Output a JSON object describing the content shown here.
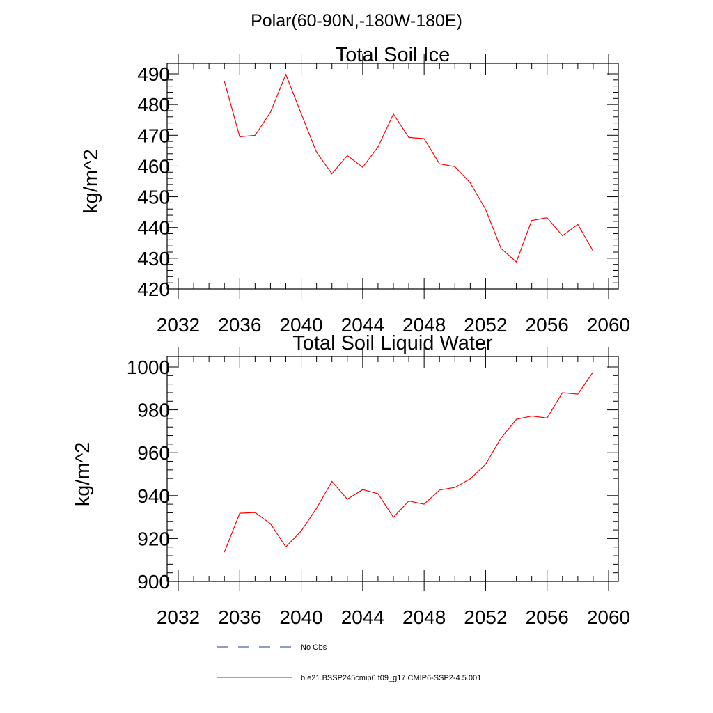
{
  "figure": {
    "title": "Polar(60-90N,-180W-180E)"
  },
  "legend": {
    "placement": "bottom",
    "entries": [
      {
        "label": "No Obs",
        "color": "#1f3a93",
        "style": "dashed"
      },
      {
        "label": "b.e21.BSSP245cmip6.f09_g17.CMIP6-SSP2-4.5.001",
        "color": "#ff0000",
        "style": "solid"
      }
    ]
  },
  "chart_data": [
    {
      "type": "line",
      "title": "Total Soil Ice",
      "xlabel": "",
      "ylabel": "kg/m^2",
      "xlim": [
        2032,
        2060
      ],
      "ylim": [
        420,
        490
      ],
      "xticks": [
        2032,
        2036,
        2040,
        2044,
        2048,
        2052,
        2056,
        2060
      ],
      "yticks": [
        420,
        430,
        440,
        450,
        460,
        470,
        480,
        490
      ],
      "grid": false,
      "series": [
        {
          "name": "b.e21.BSSP245cmip6.f09_g17.CMIP6-SSP2-4.5.001",
          "color": "#ff0000",
          "x": [
            2035,
            2036,
            2037,
            2038,
            2039,
            2040,
            2041,
            2042,
            2043,
            2044,
            2045,
            2046,
            2047,
            2048,
            2049,
            2050,
            2051,
            2052,
            2053,
            2054,
            2055,
            2056,
            2057,
            2058,
            2059
          ],
          "y": [
            487.6,
            469.5,
            470.0,
            477.5,
            489.8,
            477.0,
            464.5,
            457.5,
            463.4,
            459.6,
            466.2,
            476.9,
            469.3,
            468.9,
            460.7,
            459.8,
            454.5,
            445.9,
            433.2,
            428.8,
            442.3,
            443.2,
            437.3,
            441.0,
            432.3
          ]
        }
      ]
    },
    {
      "type": "line",
      "title": "Total Soil Liquid Water",
      "xlabel": "",
      "ylabel": "kg/m^2",
      "xlim": [
        2032,
        2060
      ],
      "ylim": [
        900,
        1000
      ],
      "xticks": [
        2032,
        2036,
        2040,
        2044,
        2048,
        2052,
        2056,
        2060
      ],
      "yticks": [
        900,
        920,
        940,
        960,
        980,
        1000
      ],
      "grid": false,
      "series": [
        {
          "name": "b.e21.BSSP245cmip6.f09_g17.CMIP6-SSP2-4.5.001",
          "color": "#ff0000",
          "x": [
            2035,
            2036,
            2037,
            2038,
            2039,
            2040,
            2041,
            2042,
            2043,
            2044,
            2045,
            2046,
            2047,
            2048,
            2049,
            2050,
            2051,
            2052,
            2053,
            2054,
            2055,
            2056,
            2057,
            2058,
            2059
          ],
          "y": [
            913.6,
            931.8,
            932.1,
            926.9,
            916.1,
            923.5,
            934.1,
            946.6,
            938.3,
            942.8,
            940.9,
            929.9,
            937.5,
            936.0,
            942.6,
            943.8,
            947.8,
            954.6,
            966.8,
            975.6,
            977.1,
            976.2,
            988.0,
            987.3,
            997.7
          ]
        }
      ]
    }
  ]
}
